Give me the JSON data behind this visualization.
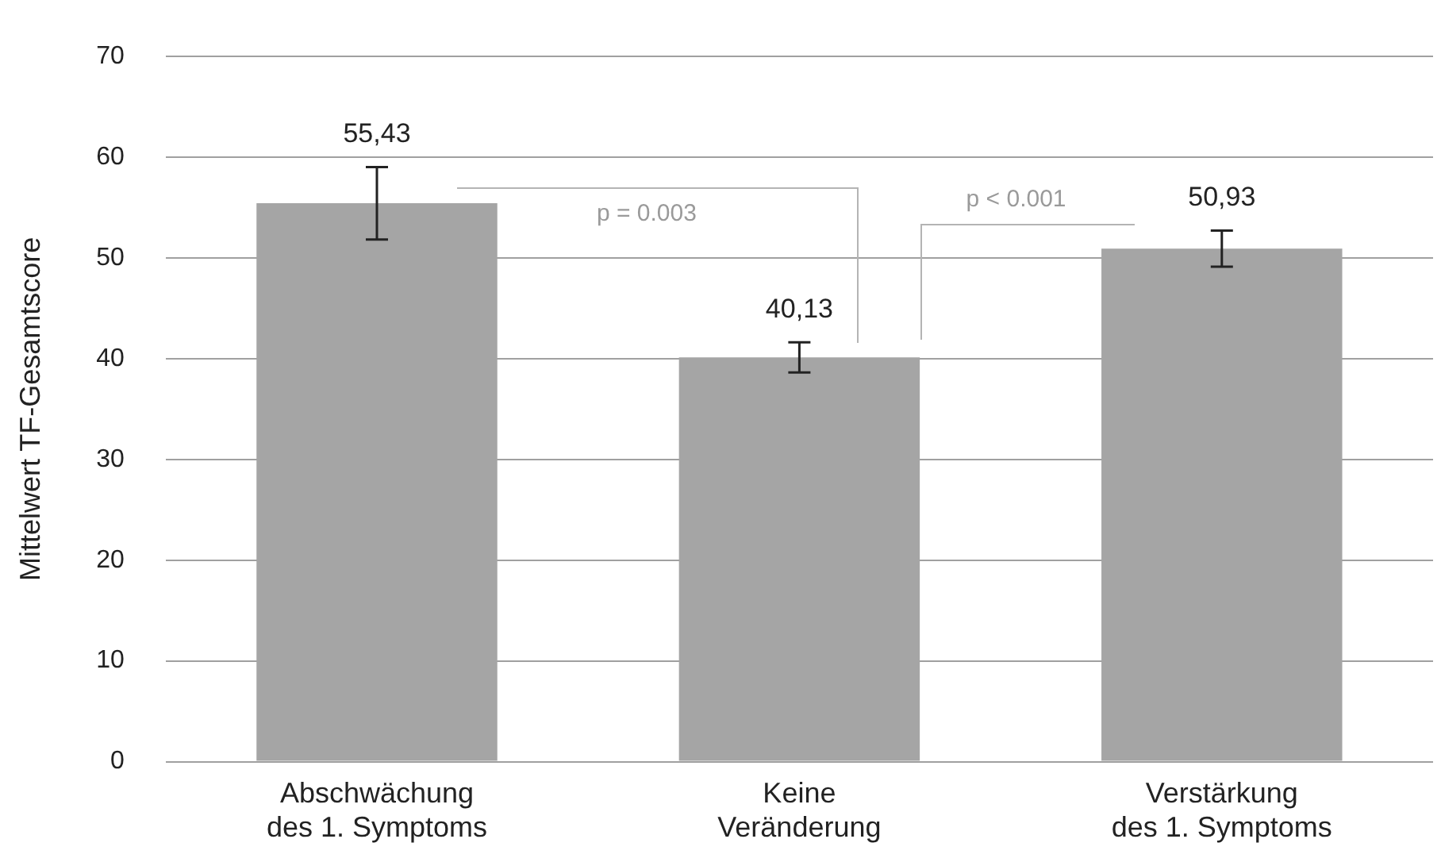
{
  "chart_data": {
    "type": "bar",
    "ylabel": "Mittelwert TF-Gesamtscore",
    "categories": [
      "Abschwächung des 1. Symptoms",
      "Keine Veränderung",
      "Verstärkung des 1. Symptoms"
    ],
    "values": [
      55.43,
      40.13,
      50.93
    ],
    "color": "#a5a5a5",
    "errors": [
      3.6,
      1.5,
      1.8
    ],
    "value_labels": [
      "55,43",
      "40,13",
      "50,93"
    ],
    "annotations": [
      "p = 0.003",
      "p < 0.001"
    ],
    "ylim": [
      0,
      70
    ],
    "yticks": [
      0,
      10,
      20,
      30,
      40,
      50,
      60,
      70
    ],
    "grid": "y",
    "legend": false
  }
}
